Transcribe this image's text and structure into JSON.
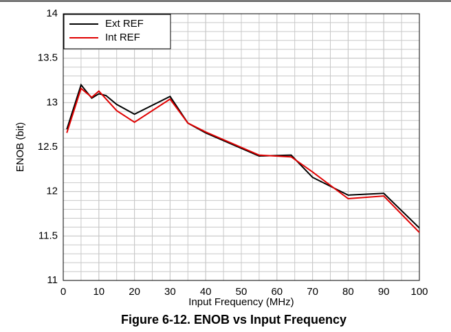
{
  "chart_data": {
    "type": "line",
    "title": "Figure 6-12. ENOB vs Input Frequency",
    "xlabel": "Input Frequency (MHz)",
    "ylabel": "ENOB (bit)",
    "xlim": [
      0,
      100
    ],
    "xticks": [
      0,
      10,
      20,
      30,
      40,
      50,
      60,
      70,
      80,
      90,
      100
    ],
    "ylim": [
      11,
      14
    ],
    "yticks": [
      11,
      11.5,
      12,
      12.5,
      13,
      13.5,
      14
    ],
    "grid": true,
    "minor_grid": {
      "x": 5,
      "y": 0.1
    },
    "legend": "upper left",
    "series": [
      {
        "name": "Ext REF",
        "color": "#000000",
        "x": [
          1,
          5,
          8,
          10,
          12,
          15,
          20,
          30,
          35,
          40,
          55,
          64,
          70,
          80,
          90,
          100
        ],
        "values": [
          12.7,
          13.2,
          13.05,
          13.1,
          13.08,
          12.98,
          12.87,
          13.07,
          12.77,
          12.66,
          12.4,
          12.41,
          12.16,
          11.96,
          11.98,
          11.59
        ]
      },
      {
        "name": "Int REF",
        "color": "#e00000",
        "x": [
          1,
          5,
          8,
          10,
          15,
          20,
          30,
          35,
          40,
          55,
          64,
          70,
          80,
          90,
          100
        ],
        "values": [
          12.66,
          13.16,
          13.06,
          13.13,
          12.91,
          12.78,
          13.04,
          12.77,
          12.67,
          12.41,
          12.39,
          12.22,
          11.92,
          11.95,
          11.54
        ]
      }
    ]
  }
}
